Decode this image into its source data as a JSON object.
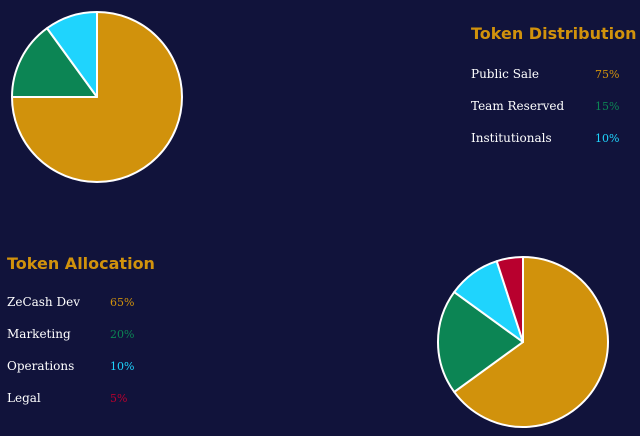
{
  "chart_data": [
    {
      "type": "pie",
      "title": "Token Distribution",
      "categories": [
        "Public Sale",
        "Team Reserved",
        "Institutionals"
      ],
      "values": [
        75,
        15,
        10
      ],
      "value_labels": [
        "75%",
        "15%",
        "10%"
      ],
      "colors": [
        "#d1920c",
        "#0c8554",
        "#1fd4fd"
      ],
      "legend": "right"
    },
    {
      "type": "pie",
      "title": "Token Allocation",
      "categories": [
        "ZeCash Dev",
        "Marketing",
        "Operations",
        "Legal"
      ],
      "values": [
        65,
        20,
        10,
        5
      ],
      "value_labels": [
        "65%",
        "20%",
        "10%",
        "5%"
      ],
      "colors": [
        "#d1920c",
        "#0c8554",
        "#1fd4fd",
        "#b8002e"
      ],
      "legend": "left"
    }
  ],
  "colors": {
    "background": "#11133b",
    "title": "#d1920c",
    "label": "#ffffff",
    "slice_stroke": "#ffffff"
  }
}
